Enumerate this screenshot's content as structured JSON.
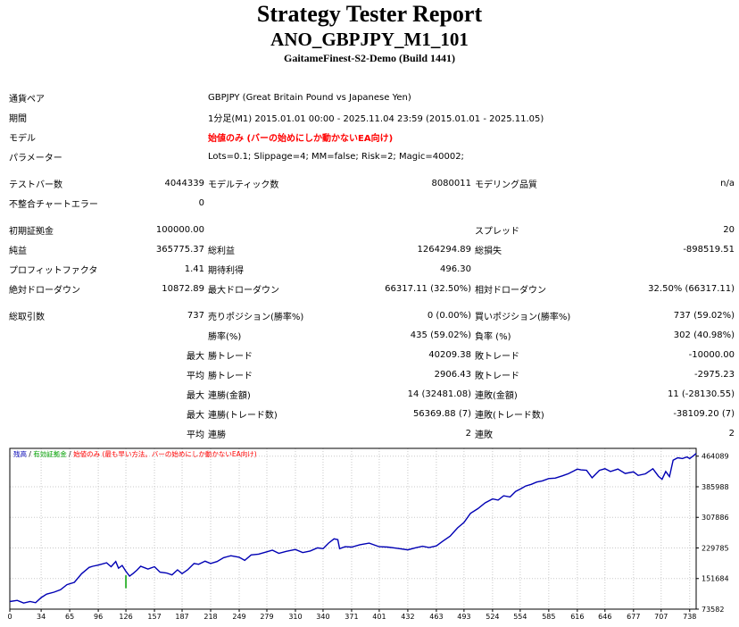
{
  "header": {
    "title": "Strategy Tester Report",
    "subtitle": "ANO_GBPJPY_M1_101",
    "company": "GaitameFinest-S2-Demo (Build 1441)"
  },
  "info": {
    "symbol_label": "通貨ペア",
    "symbol_value": "GBPJPY (Great Britain Pound vs Japanese Yen)",
    "period_label": "期間",
    "period_value": "1分足(M1) 2015.01.01 00:00 - 2025.11.04 23:59 (2015.01.01 - 2025.11.05)",
    "model_label": "モデル",
    "model_value": "始値のみ (バーの始めにしか動かないEA向け)",
    "params_label": "パラメーター",
    "params_value": "Lots=0.1; Slippage=4; MM=false; Risk=2; Magic=40002;"
  },
  "bars": {
    "test_bars_label": "テストバー数",
    "test_bars_value": "4044339",
    "model_ticks_label": "モデルティック数",
    "model_ticks_value": "8080011",
    "model_quality_label": "モデリング品質",
    "model_quality_value": "n/a",
    "mismatch_label": "不整合チャートエラー",
    "mismatch_value": "0"
  },
  "stats": {
    "initial_deposit_label": "初期証拠金",
    "initial_deposit_value": "100000.00",
    "spread_label": "スプレッド",
    "spread_value": "20",
    "net_profit_label": "純益",
    "net_profit_value": "365775.37",
    "gross_profit_label": "総利益",
    "gross_profit_value": "1264294.89",
    "gross_loss_label": "総損失",
    "gross_loss_value": "-898519.51",
    "profit_factor_label": "プロフィットファクタ",
    "profit_factor_value": "1.41",
    "expected_payoff_label": "期待利得",
    "expected_payoff_value": "496.30",
    "abs_dd_label": "絶対ドローダウン",
    "abs_dd_value": "10872.89",
    "max_dd_label": "最大ドローダウン",
    "max_dd_value": "66317.11 (32.50%)",
    "rel_dd_label": "相対ドローダウン",
    "rel_dd_value": "32.50% (66317.11)",
    "total_trades_label": "総取引数",
    "total_trades_value": "737",
    "short_pos_label": "売りポジション(勝率%)",
    "short_pos_value": "0 (0.00%)",
    "long_pos_label": "買いポジション(勝率%)",
    "long_pos_value": "737 (59.02%)",
    "win_rate_label": "勝率(%)",
    "win_rate_value": "435 (59.02%)",
    "loss_rate_label": "負率 (%)",
    "loss_rate_value": "302 (40.98%)",
    "max_label": "最大",
    "avg_label": "平均",
    "largest_win_label": "勝トレード",
    "largest_win_value": "40209.38",
    "largest_loss_label": "敗トレード",
    "largest_loss_value": "-10000.00",
    "avg_win_label": "勝トレード",
    "avg_win_value": "2906.43",
    "avg_loss_label": "敗トレード",
    "avg_loss_value": "-2975.23",
    "max_consec_wins_label": "連勝(金額)",
    "max_consec_wins_value": "14 (32481.08)",
    "max_consec_losses_label": "連敗(金額)",
    "max_consec_losses_value": "11 (-28130.55)",
    "max_consec_profit_label": "連勝(トレード数)",
    "max_consec_profit_value": "56369.88 (7)",
    "max_consec_loss_label": "連敗(トレード数)",
    "max_consec_loss_value": "-38109.20 (7)",
    "avg_consec_wins_label": "連勝",
    "avg_consec_wins_value": "2",
    "avg_consec_losses_label": "連敗",
    "avg_consec_losses_value": "2"
  },
  "chart_data": {
    "type": "line",
    "legend": [
      {
        "text": "残高",
        "color": "#0000b4"
      },
      {
        "text": "有効証拠金",
        "color": "#00a000"
      },
      {
        "text": "始値のみ (最も早い方法。バーの始めにしか動かないEA向け)",
        "color": "#ff0000"
      }
    ],
    "legend_separator": " / ",
    "x_ticks": [
      0,
      34,
      65,
      96,
      126,
      157,
      187,
      218,
      249,
      279,
      310,
      340,
      371,
      401,
      432,
      463,
      493,
      524,
      554,
      585,
      616,
      646,
      677,
      707,
      738
    ],
    "y_ticks": [
      73582,
      151684,
      229785,
      307886,
      385988,
      464089
    ],
    "xlim": [
      0,
      745
    ],
    "ylim": [
      73582,
      484000
    ],
    "grid": true,
    "series": [
      {
        "color": "#0000b4",
        "x": [
          0,
          8,
          15,
          22,
          28,
          34,
          40,
          48,
          55,
          62,
          70,
          78,
          86,
          90,
          96,
          105,
          110,
          115,
          118,
          122,
          126,
          130,
          134,
          138,
          142,
          150,
          157,
          163,
          170,
          176,
          182,
          187,
          193,
          200,
          205,
          212,
          218,
          225,
          232,
          240,
          249,
          255,
          262,
          270,
          279,
          285,
          292,
          300,
          310,
          318,
          326,
          334,
          340,
          346,
          352,
          356,
          358,
          364,
          371,
          380,
          390,
          401,
          410,
          420,
          432,
          440,
          448,
          455,
          463,
          470,
          478,
          486,
          493,
          500,
          508,
          516,
          524,
          530,
          536,
          543,
          549,
          554,
          560,
          566,
          572,
          578,
          585,
          592,
          600,
          606,
          612,
          616,
          620,
          626,
          632,
          640,
          646,
          652,
          660,
          668,
          677,
          682,
          690,
          698,
          704,
          708,
          712,
          716,
          720,
          725,
          730,
          735,
          738,
          742,
          745
        ],
        "y": [
          93000,
          96000,
          89000,
          93000,
          90000,
          103000,
          112000,
          117000,
          123000,
          136000,
          142000,
          164000,
          180000,
          183000,
          186000,
          192000,
          182000,
          195000,
          178000,
          185000,
          170000,
          158000,
          165000,
          173000,
          183000,
          176000,
          182000,
          168000,
          166000,
          161000,
          174000,
          164000,
          174000,
          190000,
          188000,
          196000,
          190000,
          195000,
          205000,
          210000,
          206000,
          198000,
          212000,
          214000,
          220000,
          224000,
          216000,
          221000,
          226000,
          218000,
          222000,
          230000,
          228000,
          242000,
          253000,
          251000,
          228000,
          233000,
          232000,
          238000,
          242000,
          233000,
          232000,
          229000,
          225000,
          230000,
          234000,
          231000,
          235000,
          247000,
          260000,
          281000,
          295000,
          318000,
          330000,
          345000,
          355000,
          352000,
          363000,
          360000,
          374000,
          380000,
          388000,
          392000,
          398000,
          401000,
          407000,
          408000,
          414000,
          419000,
          426000,
          431000,
          429000,
          428000,
          409000,
          428000,
          432000,
          425000,
          431000,
          420000,
          424000,
          415000,
          419000,
          432000,
          413000,
          405000,
          425000,
          412000,
          454000,
          460000,
          458000,
          462000,
          458000,
          465000,
          471000
        ]
      }
    ]
  }
}
